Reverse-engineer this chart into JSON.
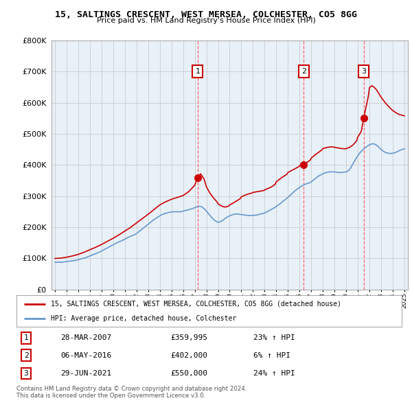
{
  "title": "15, SALTINGS CRESCENT, WEST MERSEA, COLCHESTER, CO5 8GG",
  "subtitle": "Price paid vs. HM Land Registry's House Price Index (HPI)",
  "legend_property": "15, SALTINGS CRESCENT, WEST MERSEA, COLCHESTER, CO5 8GG (detached house)",
  "legend_hpi": "HPI: Average price, detached house, Colchester",
  "footer1": "Contains HM Land Registry data © Crown copyright and database right 2024.",
  "footer2": "This data is licensed under the Open Government Licence v3.0.",
  "sales": [
    {
      "label": "1",
      "date": "28-MAR-2007",
      "price": "£359,995",
      "pct": "23% ↑ HPI",
      "sale_year": 2007.25,
      "sale_price": 359995
    },
    {
      "label": "2",
      "date": "06-MAY-2016",
      "price": "£402,000",
      "pct": "6% ↑ HPI",
      "sale_year": 2016.35,
      "sale_price": 402000
    },
    {
      "label": "3",
      "date": "29-JUN-2021",
      "price": "£550,000",
      "pct": "24% ↑ HPI",
      "sale_year": 2021.5,
      "sale_price": 550000
    }
  ],
  "hpi_x": [
    1995.0,
    1995.1,
    1995.2,
    1995.3,
    1995.4,
    1995.5,
    1995.6,
    1995.7,
    1995.8,
    1995.9,
    1996.0,
    1996.2,
    1996.4,
    1996.6,
    1996.8,
    1997.0,
    1997.2,
    1997.4,
    1997.6,
    1997.8,
    1998.0,
    1998.2,
    1998.4,
    1998.6,
    1998.8,
    1999.0,
    1999.2,
    1999.4,
    1999.6,
    1999.8,
    2000.0,
    2000.2,
    2000.4,
    2000.6,
    2000.8,
    2001.0,
    2001.2,
    2001.4,
    2001.6,
    2001.8,
    2002.0,
    2002.2,
    2002.4,
    2002.6,
    2002.8,
    2003.0,
    2003.2,
    2003.4,
    2003.6,
    2003.8,
    2004.0,
    2004.2,
    2004.4,
    2004.6,
    2004.8,
    2005.0,
    2005.2,
    2005.4,
    2005.6,
    2005.8,
    2006.0,
    2006.2,
    2006.4,
    2006.6,
    2006.8,
    2007.0,
    2007.2,
    2007.4,
    2007.6,
    2007.8,
    2008.0,
    2008.2,
    2008.4,
    2008.6,
    2008.8,
    2009.0,
    2009.2,
    2009.4,
    2009.6,
    2009.8,
    2010.0,
    2010.2,
    2010.4,
    2010.6,
    2010.8,
    2011.0,
    2011.2,
    2011.4,
    2011.6,
    2011.8,
    2012.0,
    2012.2,
    2012.4,
    2012.6,
    2012.8,
    2013.0,
    2013.2,
    2013.4,
    2013.6,
    2013.8,
    2014.0,
    2014.2,
    2014.4,
    2014.6,
    2014.8,
    2015.0,
    2015.2,
    2015.4,
    2015.6,
    2015.8,
    2016.0,
    2016.2,
    2016.4,
    2016.6,
    2016.8,
    2017.0,
    2017.2,
    2017.4,
    2017.6,
    2017.8,
    2018.0,
    2018.2,
    2018.4,
    2018.6,
    2018.8,
    2019.0,
    2019.2,
    2019.4,
    2019.6,
    2019.8,
    2020.0,
    2020.2,
    2020.4,
    2020.6,
    2020.8,
    2021.0,
    2021.2,
    2021.4,
    2021.6,
    2021.8,
    2022.0,
    2022.2,
    2022.4,
    2022.6,
    2022.8,
    2023.0,
    2023.2,
    2023.4,
    2023.6,
    2023.8,
    2024.0,
    2024.2,
    2024.4,
    2024.6,
    2024.8,
    2025.0
  ],
  "hpi_y": [
    88000,
    87500,
    88000,
    88500,
    88000,
    87500,
    88000,
    88500,
    89000,
    89500,
    90000,
    91000,
    92000,
    93000,
    94000,
    96000,
    98000,
    100000,
    102000,
    105000,
    108000,
    111000,
    114000,
    117000,
    120000,
    124000,
    128000,
    132000,
    136000,
    140000,
    144000,
    148000,
    152000,
    155000,
    158000,
    162000,
    166000,
    170000,
    173000,
    176000,
    180000,
    186000,
    192000,
    198000,
    204000,
    210000,
    216000,
    222000,
    227000,
    232000,
    237000,
    241000,
    244000,
    246000,
    248000,
    249000,
    250000,
    250000,
    250000,
    250000,
    252000,
    254000,
    256000,
    258000,
    260000,
    263000,
    266000,
    268000,
    266000,
    260000,
    252000,
    243000,
    234000,
    226000,
    220000,
    216000,
    218000,
    222000,
    228000,
    233000,
    237000,
    240000,
    242000,
    243000,
    242000,
    241000,
    240000,
    239000,
    238000,
    238000,
    238000,
    239000,
    240000,
    242000,
    244000,
    246000,
    250000,
    254000,
    258000,
    262000,
    267000,
    272000,
    278000,
    284000,
    290000,
    296000,
    303000,
    310000,
    317000,
    323000,
    328000,
    333000,
    337000,
    340000,
    342000,
    346000,
    352000,
    358000,
    364000,
    368000,
    372000,
    375000,
    377000,
    378000,
    378000,
    378000,
    377000,
    376000,
    376000,
    377000,
    378000,
    382000,
    392000,
    405000,
    418000,
    430000,
    440000,
    448000,
    455000,
    460000,
    465000,
    468000,
    468000,
    464000,
    458000,
    450000,
    444000,
    440000,
    438000,
    437000,
    438000,
    440000,
    443000,
    447000,
    450000,
    452000
  ],
  "prop_x": [
    1995.0,
    1995.5,
    1996.0,
    1996.5,
    1997.0,
    1997.5,
    1998.0,
    1998.5,
    1999.0,
    1999.5,
    2000.0,
    2000.5,
    2001.0,
    2001.5,
    2002.0,
    2002.5,
    2003.0,
    2003.5,
    2004.0,
    2004.5,
    2005.0,
    2005.5,
    2006.0,
    2006.5,
    2007.0,
    2007.25,
    2007.5,
    2007.8,
    2008.0,
    2008.3,
    2008.6,
    2008.9,
    2009.0,
    2009.3,
    2009.6,
    2009.9,
    2010.0,
    2010.3,
    2010.6,
    2010.9,
    2011.0,
    2011.3,
    2011.6,
    2011.9,
    2012.0,
    2012.3,
    2012.6,
    2012.9,
    2013.0,
    2013.3,
    2013.6,
    2013.9,
    2014.0,
    2014.3,
    2014.6,
    2014.9,
    2015.0,
    2015.3,
    2015.6,
    2015.9,
    2016.0,
    2016.35,
    2016.6,
    2016.9,
    2017.0,
    2017.3,
    2017.6,
    2017.9,
    2018.0,
    2018.3,
    2018.6,
    2018.9,
    2019.0,
    2019.3,
    2019.6,
    2019.9,
    2020.0,
    2020.3,
    2020.6,
    2020.9,
    2021.0,
    2021.3,
    2021.5,
    2021.7,
    2021.9,
    2022.0,
    2022.2,
    2022.4,
    2022.6,
    2022.8,
    2023.0,
    2023.2,
    2023.4,
    2023.6,
    2023.8,
    2024.0,
    2024.2,
    2024.4,
    2024.6,
    2024.8,
    2025.0
  ],
  "prop_y": [
    100000,
    101000,
    104000,
    108000,
    113000,
    120000,
    128000,
    136000,
    145000,
    155000,
    165000,
    176000,
    188000,
    200000,
    214000,
    228000,
    242000,
    257000,
    272000,
    282000,
    290000,
    296000,
    302000,
    315000,
    335000,
    360000,
    372000,
    355000,
    330000,
    310000,
    295000,
    282000,
    276000,
    268000,
    265000,
    268000,
    272000,
    278000,
    285000,
    292000,
    298000,
    303000,
    307000,
    310000,
    312000,
    314000,
    316000,
    318000,
    320000,
    325000,
    330000,
    338000,
    346000,
    355000,
    363000,
    370000,
    376000,
    382000,
    388000,
    394000,
    398000,
    402000,
    408000,
    415000,
    422000,
    432000,
    440000,
    448000,
    453000,
    456000,
    458000,
    458000,
    457000,
    455000,
    453000,
    452000,
    453000,
    457000,
    465000,
    478000,
    490000,
    508000,
    550000,
    585000,
    620000,
    648000,
    655000,
    650000,
    642000,
    630000,
    618000,
    608000,
    598000,
    590000,
    582000,
    575000,
    570000,
    565000,
    562000,
    560000,
    558000
  ],
  "ylim": [
    0,
    800000
  ],
  "xlim_start": 1994.7,
  "xlim_end": 2025.3,
  "property_color": "#cc0000",
  "hpi_color": "#6699cc",
  "vline_color": "#ff6666",
  "sale_marker_color": "#cc0000",
  "label_box_facecolor": "#ffffff",
  "label_box_edgecolor": "#cc0000",
  "chart_bg_color": "#e8f0f8",
  "background_color": "#ffffff",
  "grid_color": "#cccccc",
  "yticks": [
    0,
    100000,
    200000,
    300000,
    400000,
    500000,
    600000,
    700000,
    800000
  ]
}
